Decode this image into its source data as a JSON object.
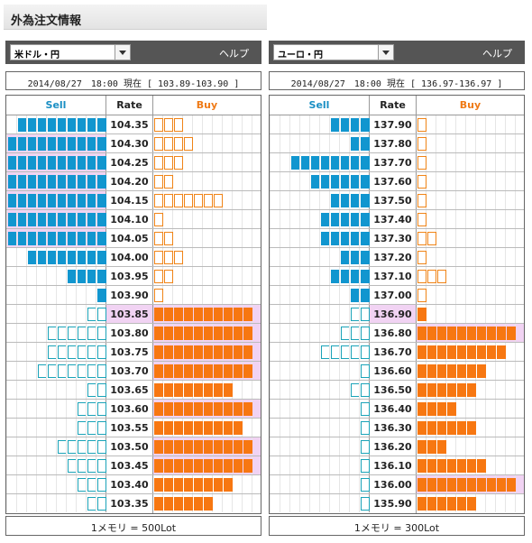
{
  "page_title": "外為注文情報",
  "colors": {
    "sell_filled": "#1196cf",
    "sell_outline": "#1aa3b8",
    "buy_filled": "#f77711",
    "buy_outline": "#f08417",
    "highlight": "#f1d3f3",
    "header_bg": "#555555"
  },
  "panels": [
    {
      "pair": "米ドル・円",
      "help": "ヘルプ",
      "info": "2014/08/27　18:00 現在 [ 103.89-103.90 ]",
      "headers": {
        "sell": "Sell",
        "rate": "Rate",
        "buy": "Buy"
      },
      "footer": "1メモリ = 500Lot",
      "rows": [
        {
          "rate": "104.35",
          "sell": 9,
          "sell_style": "filled",
          "buy": 3,
          "buy_style": "outline"
        },
        {
          "rate": "104.30",
          "sell": 10,
          "sell_style": "filled",
          "buy": 4,
          "buy_style": "outline",
          "sell_hl": true
        },
        {
          "rate": "104.25",
          "sell": 10,
          "sell_style": "filled",
          "buy": 3,
          "buy_style": "outline",
          "sell_hl": true
        },
        {
          "rate": "104.20",
          "sell": 10,
          "sell_style": "filled",
          "buy": 2,
          "buy_style": "outline",
          "sell_hl": true
        },
        {
          "rate": "104.15",
          "sell": 10,
          "sell_style": "filled",
          "buy": 7,
          "buy_style": "outline",
          "sell_hl": true
        },
        {
          "rate": "104.10",
          "sell": 10,
          "sell_style": "filled",
          "buy": 1,
          "buy_style": "outline",
          "sell_hl": true
        },
        {
          "rate": "104.05",
          "sell": 10,
          "sell_style": "filled",
          "buy": 2,
          "buy_style": "outline",
          "sell_hl": true
        },
        {
          "rate": "104.00",
          "sell": 8,
          "sell_style": "filled",
          "buy": 3,
          "buy_style": "outline"
        },
        {
          "rate": "103.95",
          "sell": 4,
          "sell_style": "filled",
          "buy": 2,
          "buy_style": "outline"
        },
        {
          "rate": "103.90",
          "sell": 1,
          "sell_style": "filled",
          "buy": 1,
          "buy_style": "outline"
        },
        {
          "rate": "103.85",
          "sell": 2,
          "sell_style": "outline",
          "buy": 10,
          "buy_style": "filled",
          "buy_hl": true,
          "rate_hl": true
        },
        {
          "rate": "103.80",
          "sell": 6,
          "sell_style": "outline",
          "buy": 10,
          "buy_style": "filled",
          "buy_hl": true
        },
        {
          "rate": "103.75",
          "sell": 6,
          "sell_style": "outline",
          "buy": 10,
          "buy_style": "filled",
          "buy_hl": true
        },
        {
          "rate": "103.70",
          "sell": 7,
          "sell_style": "outline",
          "buy": 10,
          "buy_style": "filled",
          "buy_hl": true
        },
        {
          "rate": "103.65",
          "sell": 2,
          "sell_style": "outline",
          "buy": 8,
          "buy_style": "filled"
        },
        {
          "rate": "103.60",
          "sell": 3,
          "sell_style": "outline",
          "buy": 10,
          "buy_style": "filled",
          "buy_hl": true
        },
        {
          "rate": "103.55",
          "sell": 3,
          "sell_style": "outline",
          "buy": 9,
          "buy_style": "filled"
        },
        {
          "rate": "103.50",
          "sell": 5,
          "sell_style": "outline",
          "buy": 10,
          "buy_style": "filled",
          "buy_hl": true
        },
        {
          "rate": "103.45",
          "sell": 4,
          "sell_style": "outline",
          "buy": 10,
          "buy_style": "filled",
          "buy_hl": true
        },
        {
          "rate": "103.40",
          "sell": 3,
          "sell_style": "outline",
          "buy": 8,
          "buy_style": "filled"
        },
        {
          "rate": "103.35",
          "sell": 2,
          "sell_style": "outline",
          "buy": 6,
          "buy_style": "filled"
        }
      ]
    },
    {
      "pair": "ユーロ・円",
      "help": "ヘルプ",
      "info": "2014/08/27　18:00 現在 [ 136.97-136.97 ]",
      "headers": {
        "sell": "Sell",
        "rate": "Rate",
        "buy": "Buy"
      },
      "footer": "1メモリ = 300Lot",
      "rows": [
        {
          "rate": "137.90",
          "sell": 4,
          "sell_style": "filled",
          "buy": 1,
          "buy_style": "outline"
        },
        {
          "rate": "137.80",
          "sell": 2,
          "sell_style": "filled",
          "buy": 1,
          "buy_style": "outline"
        },
        {
          "rate": "137.70",
          "sell": 8,
          "sell_style": "filled",
          "buy": 1,
          "buy_style": "outline"
        },
        {
          "rate": "137.60",
          "sell": 6,
          "sell_style": "filled",
          "buy": 1,
          "buy_style": "outline"
        },
        {
          "rate": "137.50",
          "sell": 4,
          "sell_style": "filled",
          "buy": 1,
          "buy_style": "outline"
        },
        {
          "rate": "137.40",
          "sell": 5,
          "sell_style": "filled",
          "buy": 1,
          "buy_style": "outline"
        },
        {
          "rate": "137.30",
          "sell": 5,
          "sell_style": "filled",
          "buy": 2,
          "buy_style": "outline"
        },
        {
          "rate": "137.20",
          "sell": 3,
          "sell_style": "filled",
          "buy": 1,
          "buy_style": "outline"
        },
        {
          "rate": "137.10",
          "sell": 4,
          "sell_style": "filled",
          "buy": 3,
          "buy_style": "outline"
        },
        {
          "rate": "137.00",
          "sell": 2,
          "sell_style": "filled",
          "buy": 1,
          "buy_style": "outline"
        },
        {
          "rate": "136.90",
          "sell": 2,
          "sell_style": "outline",
          "buy": 1,
          "buy_style": "filled",
          "rate_hl": true
        },
        {
          "rate": "136.80",
          "sell": 3,
          "sell_style": "outline",
          "buy": 10,
          "buy_style": "filled",
          "buy_hl": true
        },
        {
          "rate": "136.70",
          "sell": 5,
          "sell_style": "outline",
          "buy": 9,
          "buy_style": "filled"
        },
        {
          "rate": "136.60",
          "sell": 1,
          "sell_style": "outline",
          "buy": 7,
          "buy_style": "filled"
        },
        {
          "rate": "136.50",
          "sell": 2,
          "sell_style": "outline",
          "buy": 6,
          "buy_style": "filled"
        },
        {
          "rate": "136.40",
          "sell": 1,
          "sell_style": "outline",
          "buy": 4,
          "buy_style": "filled"
        },
        {
          "rate": "136.30",
          "sell": 1,
          "sell_style": "outline",
          "buy": 6,
          "buy_style": "filled"
        },
        {
          "rate": "136.20",
          "sell": 1,
          "sell_style": "outline",
          "buy": 3,
          "buy_style": "filled"
        },
        {
          "rate": "136.10",
          "sell": 1,
          "sell_style": "outline",
          "buy": 7,
          "buy_style": "filled"
        },
        {
          "rate": "136.00",
          "sell": 1,
          "sell_style": "outline",
          "buy": 10,
          "buy_style": "filled",
          "buy_hl": true
        },
        {
          "rate": "135.90",
          "sell": 1,
          "sell_style": "outline",
          "buy": 6,
          "buy_style": "filled"
        }
      ]
    }
  ]
}
